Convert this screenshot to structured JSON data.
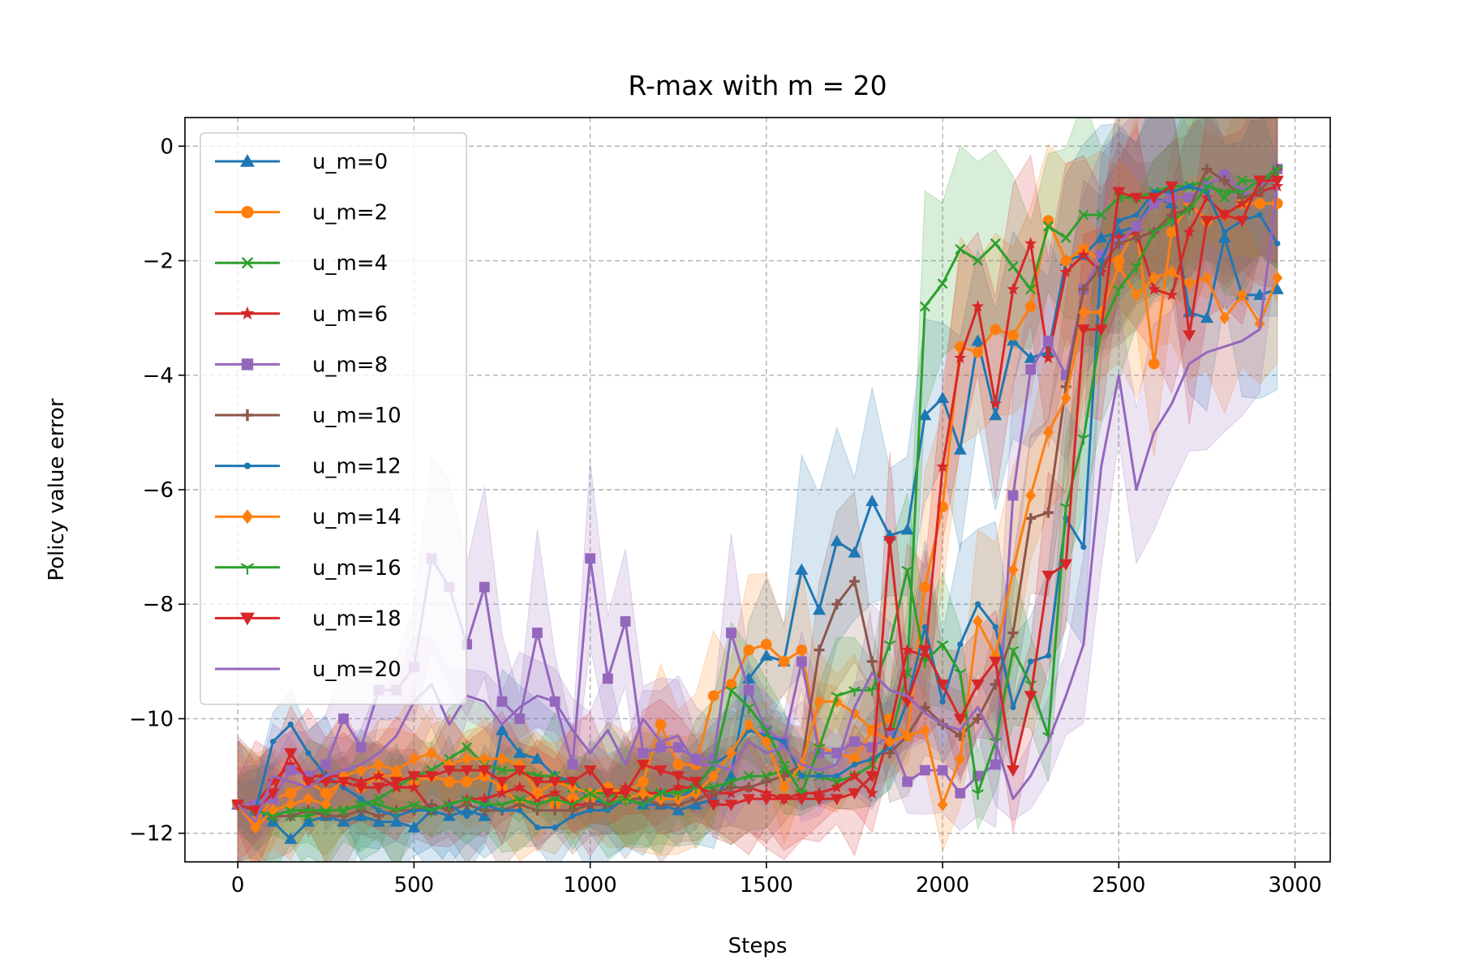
{
  "chart_data": {
    "type": "line",
    "title": "R-max with m = 20",
    "xlabel": "Steps",
    "ylabel": "Policy value error",
    "xlim": [
      -150,
      3100
    ],
    "ylim": [
      -12.5,
      0.5
    ],
    "xticks": [
      0,
      500,
      1000,
      1500,
      2000,
      2500,
      3000
    ],
    "yticks": [
      0,
      -2,
      -4,
      -6,
      -8,
      -10,
      -12
    ],
    "xtick_labels": [
      "0",
      "500",
      "1000",
      "1500",
      "2000",
      "2500",
      "3000"
    ],
    "ytick_labels": [
      "0",
      "−2",
      "−4",
      "−6",
      "−8",
      "−10",
      "−12"
    ],
    "grid": true,
    "legend_position": "upper-left",
    "x": [
      0,
      50,
      100,
      150,
      200,
      250,
      300,
      350,
      400,
      450,
      500,
      550,
      600,
      650,
      700,
      750,
      800,
      850,
      900,
      950,
      1000,
      1050,
      1100,
      1150,
      1200,
      1250,
      1300,
      1350,
      1400,
      1450,
      1500,
      1550,
      1600,
      1650,
      1700,
      1750,
      1800,
      1850,
      1900,
      1950,
      2000,
      2050,
      2100,
      2150,
      2200,
      2250,
      2300,
      2350,
      2400,
      2450,
      2500,
      2550,
      2600,
      2650,
      2700,
      2750,
      2800,
      2850,
      2900,
      2950
    ],
    "series": [
      {
        "name": "u_m=0",
        "color": "#1f77b4",
        "marker": "triangle-up",
        "values": [
          -11.5,
          -11.6,
          -11.8,
          -12.1,
          -11.8,
          -11.7,
          -11.8,
          -11.7,
          -11.8,
          -11.8,
          -11.9,
          -11.6,
          -11.7,
          -11.6,
          -11.7,
          -10.2,
          -10.6,
          -10.7,
          -11.0,
          -11.1,
          -11.4,
          -11.5,
          -11.4,
          -11.5,
          -11.5,
          -11.6,
          -11.5,
          -11.4,
          -11.0,
          -9.3,
          -8.9,
          -9.0,
          -7.4,
          -8.1,
          -6.9,
          -7.1,
          -6.2,
          -6.8,
          -6.7,
          -4.7,
          -4.4,
          -5.3,
          -3.4,
          -4.7,
          -3.4,
          -3.7,
          -3.6,
          -2.0,
          -1.9,
          -1.6,
          -1.5,
          -1.4,
          -0.9,
          -1.0,
          -2.9,
          -3.0,
          -1.6,
          -2.6,
          -2.6,
          -2.5
        ]
      },
      {
        "name": "u_m=2",
        "color": "#ff7f0e",
        "marker": "circle",
        "values": [
          -11.5,
          -11.8,
          -11.4,
          -11.3,
          -11.1,
          -11.3,
          -11.1,
          -11.2,
          -11.0,
          -11.0,
          -11.1,
          -11.0,
          -11.1,
          -11.1,
          -11.0,
          -11.2,
          -11.5,
          -11.3,
          -11.5,
          -11.4,
          -11.4,
          -11.2,
          -11.3,
          -11.1,
          -10.1,
          -10.8,
          -10.8,
          -9.6,
          -9.4,
          -8.8,
          -8.7,
          -9.0,
          -8.8,
          -10.5,
          -10.6,
          -10.7,
          -10.2,
          -10.0,
          -10.3,
          -7.7,
          -6.3,
          -3.5,
          -3.6,
          -3.2,
          -3.3,
          -2.8,
          -1.3,
          -2.0,
          -1.8,
          -2.0,
          -2.0,
          -1.4,
          -3.8,
          -1.5,
          -1.0,
          -1.3,
          -1.2,
          -1.0,
          -1.0,
          -1.0
        ]
      },
      {
        "name": "u_m=4",
        "color": "#2ca02c",
        "marker": "x",
        "values": [
          -11.5,
          -11.6,
          -11.7,
          -11.7,
          -11.7,
          -11.6,
          -11.6,
          -11.5,
          -11.4,
          -11.2,
          -11.0,
          -10.9,
          -10.7,
          -10.5,
          -10.8,
          -10.9,
          -10.9,
          -11.0,
          -11.0,
          -11.2,
          -11.3,
          -11.3,
          -11.4,
          -11.3,
          -11.3,
          -11.3,
          -11.2,
          -11.2,
          -11.1,
          -11.0,
          -11.0,
          -10.9,
          -11.0,
          -11.0,
          -11.1,
          -11.0,
          -10.8,
          -10.4,
          -9.2,
          -2.8,
          -2.4,
          -1.8,
          -2.0,
          -1.7,
          -2.1,
          -2.5,
          -1.4,
          -1.6,
          -1.2,
          -1.2,
          -0.9,
          -0.9,
          -0.8,
          -0.7,
          -0.7,
          -0.6,
          -0.9,
          -0.6,
          -0.6,
          -0.5
        ]
      },
      {
        "name": "u_m=6",
        "color": "#d62728",
        "marker": "star",
        "values": [
          -11.5,
          -11.5,
          -11.1,
          -10.8,
          -11.0,
          -11.0,
          -11.0,
          -11.1,
          -11.0,
          -11.2,
          -11.2,
          -11.6,
          -11.5,
          -11.4,
          -11.4,
          -11.3,
          -11.2,
          -11.4,
          -11.3,
          -11.5,
          -11.5,
          -11.5,
          -11.2,
          -11.3,
          -11.3,
          -11.2,
          -11.2,
          -11.3,
          -11.3,
          -11.2,
          -11.3,
          -11.4,
          -11.3,
          -11.3,
          -11.2,
          -11.0,
          -11.3,
          -10.2,
          -8.8,
          -8.9,
          -5.6,
          -3.7,
          -2.8,
          -4.5,
          -2.5,
          -1.7,
          -3.7,
          -2.2,
          -1.9,
          -2.2,
          -1.6,
          -1.5,
          -2.5,
          -2.6,
          -1.5,
          -0.9,
          -1.2,
          -1.0,
          -0.8,
          -0.7
        ]
      },
      {
        "name": "u_m=8",
        "color": "#9467bd",
        "marker": "square",
        "values": [
          -11.5,
          -11.5,
          -11.4,
          -10.9,
          -11.0,
          -10.8,
          -10.0,
          -10.5,
          -9.5,
          -9.5,
          -9.1,
          -7.2,
          -7.7,
          -8.7,
          -7.7,
          -9.7,
          -10.0,
          -8.5,
          -9.7,
          -10.8,
          -7.2,
          -9.3,
          -8.3,
          -10.6,
          -10.5,
          -10.5,
          -10.7,
          -10.7,
          -8.5,
          -9.5,
          -10.2,
          -10.4,
          -9.0,
          -10.6,
          -10.6,
          -10.4,
          -10.5,
          -10.3,
          -11.1,
          -10.9,
          -10.9,
          -11.3,
          -11.0,
          -10.8,
          -6.1,
          -3.9,
          -3.4,
          -4.0,
          -2.5,
          -1.9,
          -1.7,
          -1.4,
          -1.0,
          -0.9,
          -0.9,
          -0.7,
          -0.5,
          -0.8,
          -0.6,
          -0.4
        ]
      },
      {
        "name": "u_m=10",
        "color": "#8c564b",
        "marker": "plus",
        "values": [
          -11.5,
          -11.6,
          -11.7,
          -11.7,
          -11.6,
          -11.7,
          -11.7,
          -11.6,
          -11.7,
          -11.6,
          -11.6,
          -11.5,
          -11.6,
          -11.5,
          -11.6,
          -11.6,
          -11.5,
          -11.6,
          -11.6,
          -11.6,
          -11.5,
          -11.5,
          -11.4,
          -11.4,
          -11.5,
          -11.5,
          -11.4,
          -11.3,
          -11.2,
          -11.2,
          -11.1,
          -11.0,
          -10.8,
          -8.8,
          -8.0,
          -7.6,
          -9.0,
          -10.6,
          -10.3,
          -9.8,
          -10.1,
          -10.3,
          -10.0,
          -9.4,
          -8.5,
          -6.5,
          -6.4,
          -4.2,
          -2.5,
          -2.1,
          -1.7,
          -1.6,
          -1.5,
          -1.2,
          -1.1,
          -0.4,
          -0.6,
          -0.9,
          -0.8,
          -0.4
        ]
      },
      {
        "name": "u_m=12",
        "color": "#1f77b4",
        "marker": "point",
        "values": [
          -11.5,
          -11.6,
          -10.4,
          -10.1,
          -10.6,
          -11.0,
          -11.2,
          -11.4,
          -11.6,
          -11.7,
          -11.6,
          -11.6,
          -11.5,
          -11.7,
          -11.5,
          -11.6,
          -11.6,
          -11.9,
          -11.9,
          -11.7,
          -11.6,
          -11.6,
          -11.4,
          -11.5,
          -11.3,
          -11.4,
          -11.2,
          -10.8,
          -10.6,
          -10.2,
          -10.3,
          -10.4,
          -11.0,
          -11.0,
          -11.0,
          -10.8,
          -10.7,
          -10.5,
          -9.7,
          -8.4,
          -9.7,
          -8.7,
          -8.0,
          -8.4,
          -9.8,
          -9.0,
          -8.9,
          -6.5,
          -7.0,
          -2.0,
          -1.3,
          -1.2,
          -0.8,
          -0.8,
          -0.7,
          -0.8,
          -1.5,
          -1.3,
          -1.2,
          -1.7
        ]
      },
      {
        "name": "u_m=14",
        "color": "#ff7f0e",
        "marker": "diamond",
        "values": [
          -11.5,
          -11.9,
          -11.6,
          -11.5,
          -11.4,
          -11.5,
          -11.0,
          -10.9,
          -10.8,
          -10.9,
          -10.7,
          -10.6,
          -10.8,
          -10.7,
          -10.7,
          -10.7,
          -10.8,
          -11.3,
          -11.1,
          -11.2,
          -11.3,
          -11.2,
          -11.4,
          -11.3,
          -11.4,
          -11.4,
          -11.3,
          -11.0,
          -10.6,
          -10.1,
          -10.4,
          -11.2,
          -10.8,
          -9.7,
          -9.7,
          -9.9,
          -10.2,
          -10.4,
          -10.3,
          -10.2,
          -11.5,
          -10.7,
          -8.3,
          -8.9,
          -7.4,
          -6.1,
          -5.0,
          -4.4,
          -2.9,
          -2.9,
          -2.1,
          -2.6,
          -2.3,
          -2.2,
          -2.4,
          -2.3,
          -3.0,
          -2.6,
          -3.1,
          -2.3
        ]
      },
      {
        "name": "u_m=16",
        "color": "#2ca02c",
        "marker": "tri-down",
        "values": [
          -11.5,
          -11.6,
          -11.7,
          -11.6,
          -11.6,
          -11.6,
          -11.6,
          -11.5,
          -11.5,
          -11.6,
          -11.5,
          -11.6,
          -11.5,
          -11.4,
          -11.5,
          -11.5,
          -11.4,
          -11.5,
          -11.4,
          -11.5,
          -11.3,
          -11.5,
          -11.4,
          -11.5,
          -11.3,
          -11.3,
          -11.2,
          -10.8,
          -9.5,
          -9.8,
          -10.2,
          -10.8,
          -11.3,
          -10.5,
          -9.6,
          -9.5,
          -9.5,
          -8.7,
          -7.4,
          -9.0,
          -8.7,
          -9.2,
          -11.3,
          -10.4,
          -8.8,
          -9.4,
          -10.3,
          -6.3,
          -5.1,
          -3.2,
          -2.5,
          -2.1,
          -1.5,
          -1.3,
          -1.1,
          -0.7,
          -0.8,
          -0.8,
          -0.6,
          -0.4
        ]
      },
      {
        "name": "u_m=18",
        "color": "#d62728",
        "marker": "triangle-down",
        "values": [
          -11.5,
          -11.6,
          -11.3,
          -10.6,
          -11.1,
          -11.1,
          -11.1,
          -11.2,
          -11.2,
          -11.1,
          -11.0,
          -11.0,
          -10.9,
          -10.9,
          -10.9,
          -11.1,
          -10.9,
          -11.1,
          -11.1,
          -11.1,
          -10.9,
          -11.3,
          -11.3,
          -10.8,
          -10.9,
          -11.0,
          -11.1,
          -11.5,
          -11.5,
          -11.4,
          -11.4,
          -11.4,
          -11.4,
          -11.4,
          -11.4,
          -11.3,
          -11.0,
          -6.9,
          -9.7,
          -8.8,
          -9.4,
          -10.0,
          -9.4,
          -9.0,
          -10.9,
          -9.6,
          -7.5,
          -7.3,
          -3.2,
          -3.2,
          -0.8,
          -0.9,
          -0.9,
          -0.7,
          -3.3,
          -1.3,
          -1.2,
          -1.3,
          -0.6,
          -0.6
        ]
      },
      {
        "name": "u_m=20",
        "color": "#9467bd",
        "marker": "none",
        "values": [
          -11.5,
          -11.8,
          -11.0,
          -11.1,
          -11.2,
          -11.0,
          -10.9,
          -10.8,
          -10.6,
          -10.3,
          -9.7,
          -9.4,
          -10.1,
          -9.6,
          -9.7,
          -10.1,
          -9.8,
          -9.6,
          -9.7,
          -10.2,
          -10.6,
          -10.2,
          -10.8,
          -10.0,
          -10.4,
          -10.3,
          -10.8,
          -10.8,
          -10.9,
          -10.4,
          -10.6,
          -10.5,
          -10.8,
          -10.9,
          -10.8,
          -9.8,
          -9.2,
          -9.5,
          -9.6,
          -9.9,
          -10.1,
          -10.2,
          -9.8,
          -10.4,
          -11.4,
          -11.0,
          -10.4,
          -9.6,
          -8.7,
          -5.6,
          -4.0,
          -6.0,
          -5.0,
          -4.5,
          -3.8,
          -3.6,
          -3.5,
          -3.4,
          -3.2,
          -0.7
        ]
      }
    ]
  }
}
